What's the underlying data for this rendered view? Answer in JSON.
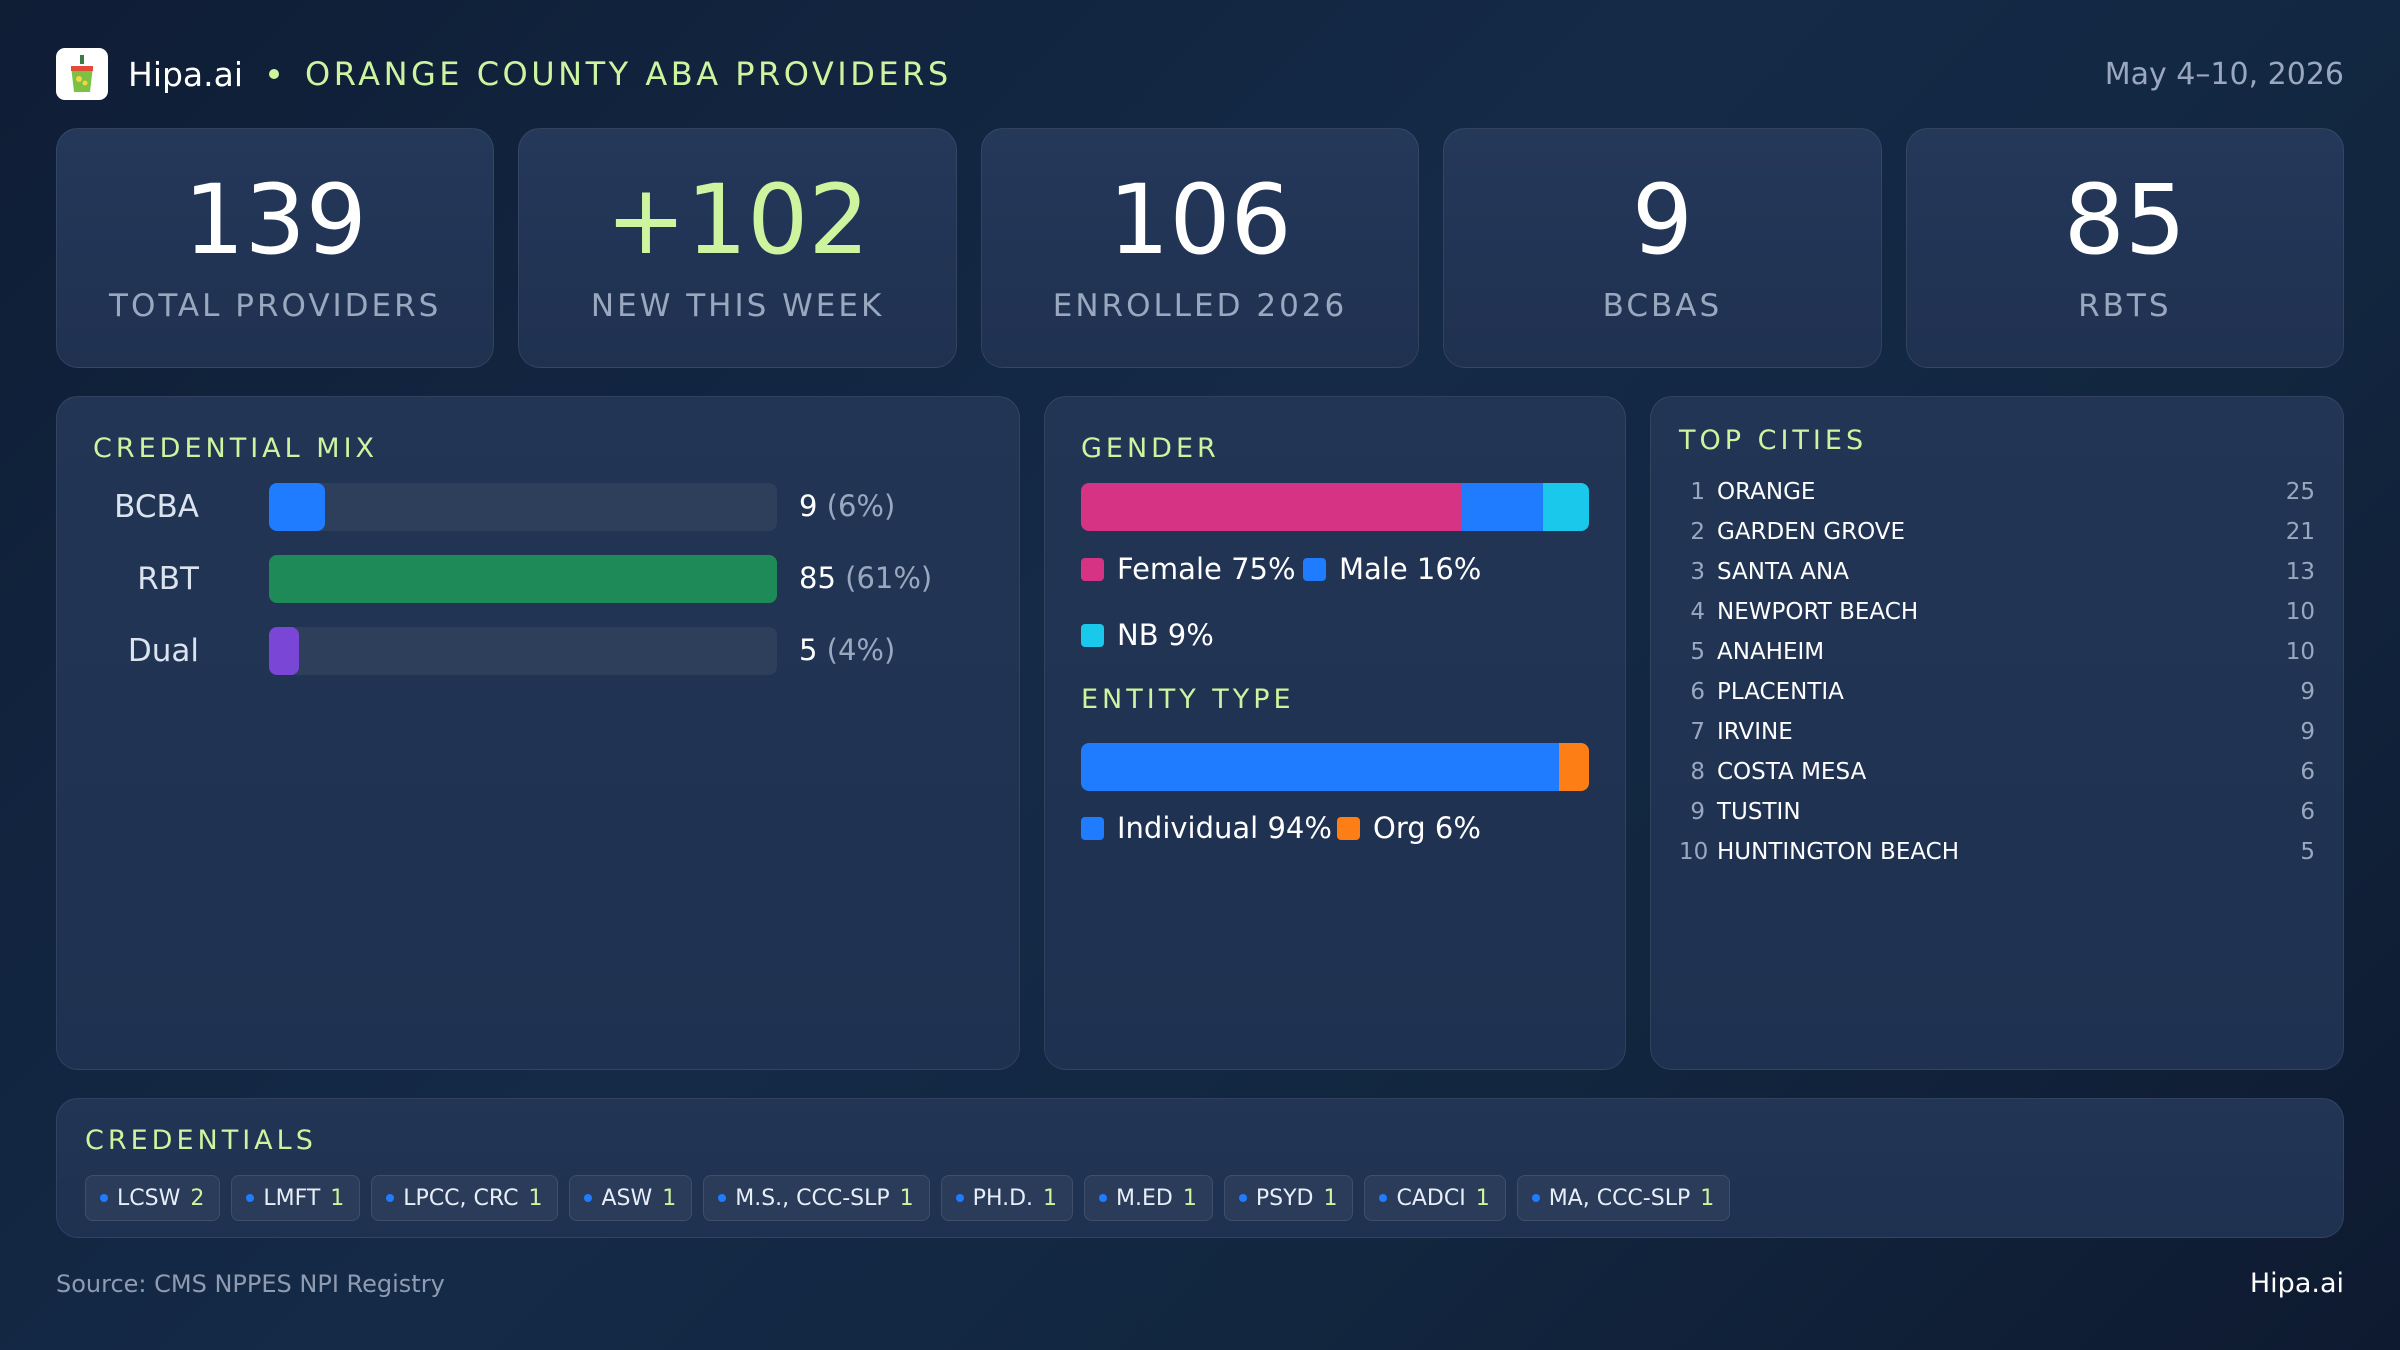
{
  "header": {
    "brand": "Hipa.ai",
    "title": "ORANGE COUNTY ABA PROVIDERS",
    "date_range": "May 4–10, 2026"
  },
  "kpis": [
    {
      "value": "139",
      "label": "TOTAL PROVIDERS"
    },
    {
      "value": "+102",
      "label": "NEW THIS WEEK"
    },
    {
      "value": "106",
      "label": "ENROLLED 2026"
    },
    {
      "value": "9",
      "label": "BCBAS"
    },
    {
      "value": "85",
      "label": "RBTS"
    }
  ],
  "credential_mix": {
    "title": "CREDENTIAL MIX",
    "rows": [
      {
        "name": "BCBA",
        "value": "9",
        "pct": "(6%)",
        "fraction": 0.11,
        "color": "#1f7cff"
      },
      {
        "name": "RBT",
        "value": "85",
        "pct": "(61%)",
        "fraction": 1.0,
        "color": "#1e8a57"
      },
      {
        "name": "Dual",
        "value": "5",
        "pct": "(4%)",
        "fraction": 0.06,
        "color": "#7a46d6"
      }
    ]
  },
  "gender": {
    "title": "GENDER",
    "segments": [
      {
        "label": "Female 75%",
        "share": 75,
        "color": "#d63384"
      },
      {
        "label": "Male 16%",
        "share": 16,
        "color": "#1f7cff"
      },
      {
        "label": "NB 9%",
        "share": 9,
        "color": "#19c8ea"
      }
    ]
  },
  "entity_type": {
    "title": "ENTITY TYPE",
    "segments": [
      {
        "label": "Individual 94%",
        "share": 94,
        "color": "#1f7cff"
      },
      {
        "label": "Org 6%",
        "share": 6,
        "color": "#fd7e14"
      }
    ]
  },
  "top_cities": {
    "title": "TOP CITIES",
    "items": [
      {
        "rank": "1",
        "name": "ORANGE",
        "count": "25"
      },
      {
        "rank": "2",
        "name": "GARDEN GROVE",
        "count": "21"
      },
      {
        "rank": "3",
        "name": "SANTA ANA",
        "count": "13"
      },
      {
        "rank": "4",
        "name": "NEWPORT BEACH",
        "count": "10"
      },
      {
        "rank": "5",
        "name": "ANAHEIM",
        "count": "10"
      },
      {
        "rank": "6",
        "name": "PLACENTIA",
        "count": "9"
      },
      {
        "rank": "7",
        "name": "IRVINE",
        "count": "9"
      },
      {
        "rank": "8",
        "name": "COSTA MESA",
        "count": "6"
      },
      {
        "rank": "9",
        "name": "TUSTIN",
        "count": "6"
      },
      {
        "rank": "10",
        "name": "HUNTINGTON BEACH",
        "count": "5"
      }
    ]
  },
  "credentials": {
    "title": "CREDENTIALS",
    "chips": [
      {
        "name": "LCSW",
        "count": "2"
      },
      {
        "name": "LMFT",
        "count": "1"
      },
      {
        "name": "LPCC, CRC",
        "count": "1"
      },
      {
        "name": "ASW",
        "count": "1"
      },
      {
        "name": "M.S., CCC-SLP",
        "count": "1"
      },
      {
        "name": "PH.D.",
        "count": "1"
      },
      {
        "name": "M.ED",
        "count": "1"
      },
      {
        "name": "PSYD",
        "count": "1"
      },
      {
        "name": "CADCI",
        "count": "1"
      },
      {
        "name": "MA, CCC-SLP",
        "count": "1"
      }
    ]
  },
  "footer": {
    "source": "Source: CMS NPPES NPI Registry",
    "brand": "Hipa.ai"
  }
}
